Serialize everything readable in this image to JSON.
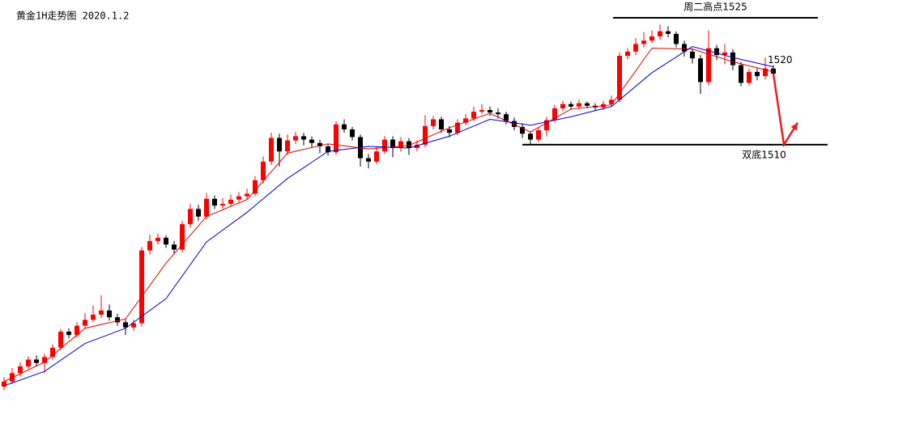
{
  "chart_data": {
    "type": "candlestick",
    "title": "黄金1H走势图 2020.1.2",
    "ylim": [
      1477.1,
      1527.1
    ],
    "up_color": "#ff0000",
    "down_color": "#000000",
    "open": [
      1481.4,
      1482.0,
      1483.0,
      1483.8,
      1484.6,
      1484.2,
      1484.9,
      1486.0,
      1487.9,
      1487.5,
      1488.6,
      1489.3,
      1489.9,
      1490.4,
      1489.6,
      1489.0,
      1488.4,
      1488.9,
      1497.5,
      1498.6,
      1499.0,
      1498.2,
      1497.6,
      1500.6,
      1502.4,
      1501.5,
      1503.6,
      1502.8,
      1503.0,
      1503.5,
      1503.9,
      1504.2,
      1505.8,
      1508.0,
      1510.8,
      1509.2,
      1510.5,
      1511.0,
      1510.6,
      1510.2,
      1509.8,
      1509.1,
      1512.4,
      1511.8,
      1510.9,
      1508.4,
      1508.0,
      1509.2,
      1510.6,
      1509.6,
      1510.4,
      1509.6,
      1510.0,
      1512.2,
      1513.0,
      1511.8,
      1511.4,
      1512.6,
      1513.1,
      1513.9,
      1514.1,
      1513.8,
      1513.6,
      1512.8,
      1512.1,
      1511.3,
      1510.6,
      1511.7,
      1512.9,
      1514.3,
      1514.8,
      1514.5,
      1514.9,
      1514.6,
      1514.4,
      1514.8,
      1515.3,
      1520.5,
      1521.0,
      1521.9,
      1522.3,
      1522.8,
      1523.4,
      1523.1,
      1521.9,
      1521.0,
      1520.2,
      1517.4,
      1521.4,
      1520.6,
      1520.9,
      1519.4,
      1517.3,
      1518.6,
      1518.1,
      1519.0
    ],
    "high": [
      1482.5,
      1483.6,
      1484.3,
      1485.0,
      1485.1,
      1485.3,
      1486.4,
      1488.2,
      1488.3,
      1489.0,
      1490.1,
      1491.0,
      1492.2,
      1491.1,
      1490.0,
      1489.4,
      1489.3,
      1497.9,
      1499.4,
      1499.5,
      1499.3,
      1498.6,
      1501.0,
      1503.0,
      1502.9,
      1504.3,
      1504.0,
      1503.7,
      1504.1,
      1504.4,
      1504.8,
      1506.3,
      1508.6,
      1511.4,
      1511.3,
      1511.2,
      1511.5,
      1511.4,
      1511.0,
      1510.6,
      1510.1,
      1512.8,
      1513.0,
      1512.1,
      1511.2,
      1508.9,
      1509.7,
      1511.0,
      1511.0,
      1510.9,
      1510.8,
      1510.5,
      1513.5,
      1513.4,
      1513.3,
      1512.2,
      1513.0,
      1513.6,
      1514.5,
      1514.8,
      1514.5,
      1514.3,
      1513.9,
      1513.2,
      1512.5,
      1511.6,
      1512.1,
      1513.3,
      1514.7,
      1515.2,
      1515.1,
      1515.3,
      1515.1,
      1514.9,
      1515.2,
      1515.8,
      1520.9,
      1521.4,
      1522.6,
      1523.3,
      1523.5,
      1524.2,
      1524.0,
      1523.4,
      1522.3,
      1521.4,
      1520.6,
      1523.5,
      1521.8,
      1521.9,
      1521.3,
      1519.8,
      1519.0,
      1519.0,
      1520.3,
      1519.4
    ],
    "low": [
      1481.0,
      1481.7,
      1482.6,
      1483.5,
      1483.8,
      1483.0,
      1484.6,
      1485.7,
      1487.1,
      1487.2,
      1488.3,
      1489.0,
      1489.5,
      1489.2,
      1488.6,
      1487.5,
      1488.0,
      1488.5,
      1497.0,
      1498.2,
      1497.8,
      1497.0,
      1497.3,
      1500.2,
      1501.0,
      1501.2,
      1502.4,
      1502.4,
      1502.7,
      1503.1,
      1503.5,
      1503.9,
      1505.4,
      1507.6,
      1507.4,
      1508.8,
      1510.1,
      1509.9,
      1509.6,
      1509.0,
      1508.7,
      1508.8,
      1511.4,
      1510.5,
      1507.4,
      1507.2,
      1507.7,
      1508.9,
      1508.5,
      1509.2,
      1508.8,
      1509.2,
      1509.7,
      1511.8,
      1511.4,
      1510.9,
      1511.1,
      1512.3,
      1512.8,
      1513.6,
      1513.4,
      1513.1,
      1512.4,
      1511.7,
      1510.8,
      1510.0,
      1510.3,
      1511.0,
      1512.6,
      1514.0,
      1514.1,
      1514.2,
      1514.3,
      1514.0,
      1514.1,
      1514.5,
      1515.0,
      1520.1,
      1520.6,
      1521.5,
      1522.0,
      1522.4,
      1522.7,
      1521.5,
      1520.4,
      1519.6,
      1516.0,
      1517.0,
      1520.0,
      1519.5,
      1518.8,
      1516.9,
      1517.0,
      1517.6,
      1517.7,
      1518.0
    ],
    "close": [
      1482.0,
      1483.0,
      1483.8,
      1484.6,
      1484.2,
      1484.9,
      1486.0,
      1487.9,
      1487.5,
      1488.6,
      1489.3,
      1489.9,
      1490.4,
      1489.6,
      1489.0,
      1488.4,
      1488.9,
      1497.5,
      1498.6,
      1499.0,
      1498.2,
      1497.6,
      1500.6,
      1502.4,
      1501.5,
      1503.6,
      1502.8,
      1503.0,
      1503.5,
      1503.9,
      1504.2,
      1505.8,
      1508.0,
      1510.8,
      1509.2,
      1510.5,
      1511.0,
      1510.6,
      1510.2,
      1509.8,
      1509.1,
      1512.4,
      1511.8,
      1510.9,
      1508.4,
      1508.0,
      1509.2,
      1510.6,
      1509.6,
      1510.4,
      1509.6,
      1510.0,
      1512.2,
      1513.0,
      1511.8,
      1511.4,
      1512.6,
      1513.1,
      1513.9,
      1514.1,
      1513.8,
      1513.6,
      1512.8,
      1512.1,
      1511.3,
      1510.6,
      1511.7,
      1512.9,
      1514.3,
      1514.8,
      1514.5,
      1514.9,
      1514.6,
      1514.4,
      1514.8,
      1515.3,
      1520.5,
      1521.0,
      1521.9,
      1522.3,
      1522.8,
      1523.4,
      1523.1,
      1521.9,
      1521.0,
      1520.2,
      1517.4,
      1521.4,
      1520.6,
      1520.9,
      1519.4,
      1517.3,
      1518.6,
      1518.1,
      1519.0,
      1518.4
    ],
    "lines": [
      {
        "color": "#dd0000",
        "x": [
          0,
          5,
          10,
          15,
          20,
          25,
          30,
          35,
          40,
          45,
          50,
          55,
          60,
          65,
          70,
          75,
          80,
          85,
          90,
          95
        ],
        "values": [
          1482.0,
          1484.3,
          1488.3,
          1489.4,
          1496.0,
          1501.5,
          1503.5,
          1509.0,
          1510.1,
          1509.5,
          1509.9,
          1512.0,
          1513.7,
          1511.5,
          1514.2,
          1514.7,
          1521.4,
          1521.3,
          1519.8,
          1518.6
        ]
      },
      {
        "color": "#0000cc",
        "x": [
          0,
          5,
          10,
          15,
          20,
          25,
          30,
          35,
          40,
          45,
          50,
          55,
          60,
          65,
          70,
          75,
          80,
          85,
          90,
          95
        ],
        "values": [
          1481.5,
          1483.2,
          1486.5,
          1488.3,
          1491.8,
          1498.5,
          1502.0,
          1506.0,
          1509.2,
          1509.8,
          1509.6,
          1511.0,
          1513.0,
          1512.3,
          1513.3,
          1514.5,
          1518.5,
          1521.6,
          1520.3,
          1519.2
        ]
      }
    ],
    "levels": [
      {
        "label": "周二高点1525",
        "value": 1525,
        "line": true,
        "from": 75.2,
        "to": 100.5
      },
      {
        "label": "1520",
        "value": 1520,
        "line": false,
        "from": 94.3,
        "to": 94.3
      },
      {
        "label": "双底1510",
        "value": 1510,
        "line": true,
        "from": 64,
        "to": 101.7
      }
    ],
    "forecast": {
      "color": "#ee1c1c",
      "x": [
        95,
        96.3,
        98
      ],
      "values": [
        1518.4,
        1510,
        1512.6
      ]
    }
  }
}
